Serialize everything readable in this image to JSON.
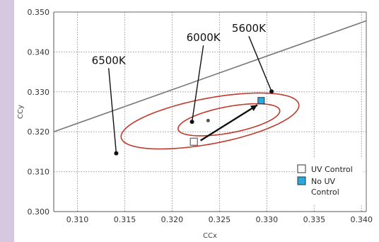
{
  "chart_data": {
    "type": "scatter",
    "xlabel": "CCx",
    "ylabel": "CCy",
    "xlim": [
      0.3075,
      0.3405
    ],
    "ylim": [
      0.3,
      0.35
    ],
    "xticks": [
      "0.310",
      "0.315",
      "0.320",
      "0.325",
      "0.330",
      "0.335",
      "0.340"
    ],
    "yticks": [
      "0.300",
      "0.310",
      "0.320",
      "0.330",
      "0.340",
      "0.350"
    ],
    "x_tick_values": [
      0.31,
      0.315,
      0.32,
      0.325,
      0.33,
      0.335,
      0.34
    ],
    "y_tick_values": [
      0.3,
      0.31,
      0.32,
      0.33,
      0.34,
      0.35
    ],
    "grid": true,
    "blackbody_line": [
      [
        0.3075,
        0.32
      ],
      [
        0.3405,
        0.3478
      ]
    ],
    "ellipses": [
      {
        "center": [
          0.324,
          0.3227
        ],
        "semi_major": 0.0105,
        "semi_minor": 0.0052,
        "angle_deg": 31
      },
      {
        "center": [
          0.326,
          0.323
        ],
        "semi_major": 0.006,
        "semi_minor": 0.003,
        "angle_deg": 31
      }
    ],
    "series": [
      {
        "name": "UV Control",
        "x": [
          0.3223
        ],
        "y": [
          0.3175
        ],
        "marker": "open-square",
        "color": "#ffffff"
      },
      {
        "name": "No UV Control",
        "x": [
          0.3294
        ],
        "y": [
          0.3278
        ],
        "marker": "filled-square",
        "color": "#29a9e0"
      }
    ],
    "arrow": {
      "from": [
        0.323,
        0.3178
      ],
      "to": [
        0.329,
        0.3267
      ]
    },
    "center_dot": [
      0.3238,
      0.3228
    ],
    "annotations": [
      {
        "text": "6500K",
        "point": [
          0.3141,
          0.3146
        ],
        "label_at": [
          0.3133,
          0.337
        ]
      },
      {
        "text": "6000K",
        "point": [
          0.3221,
          0.3225
        ],
        "label_at": [
          0.3233,
          0.3427
        ]
      },
      {
        "text": "5600K",
        "point": [
          0.3305,
          0.3301
        ],
        "label_at": [
          0.3281,
          0.345
        ]
      }
    ],
    "legend_position": "bottom-right",
    "colors": {
      "ellipse": "#c0392b",
      "line": "#777777",
      "grid": "#999999",
      "no_uv": "#29a9e0"
    }
  }
}
